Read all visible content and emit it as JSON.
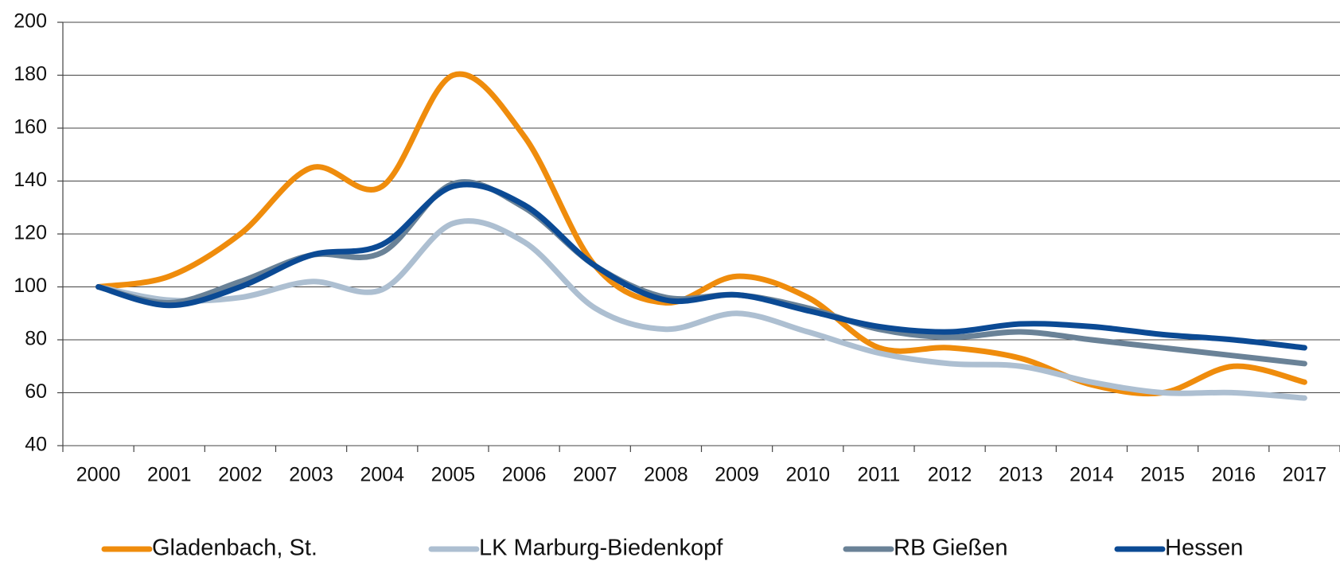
{
  "chart_data": {
    "type": "line",
    "categories": [
      "2000",
      "2001",
      "2002",
      "2003",
      "2004",
      "2005",
      "2006",
      "2007",
      "2008",
      "2009",
      "2010",
      "2011",
      "2012",
      "2013",
      "2014",
      "2015",
      "2016",
      "2017"
    ],
    "series": [
      {
        "name": "Gladenbach, St.",
        "color": "#ef8c0c",
        "values": [
          100,
          104,
          120,
          145,
          138,
          180,
          157,
          108,
          94,
          104,
          96,
          77,
          77,
          73,
          63,
          60,
          70,
          64
        ]
      },
      {
        "name": "LK Marburg-Biedenkopf",
        "color": "#adbfd1",
        "values": [
          100,
          95,
          96,
          102,
          99,
          124,
          117,
          92,
          84,
          90,
          83,
          75,
          71,
          70,
          64,
          60,
          60,
          58
        ]
      },
      {
        "name": "RB Gießen",
        "color": "#6a8297",
        "values": [
          100,
          94,
          102,
          112,
          113,
          139,
          130,
          108,
          96,
          97,
          92,
          84,
          81,
          83,
          80,
          77,
          74,
          71
        ]
      },
      {
        "name": "Hessen",
        "color": "#0b4a94",
        "values": [
          100,
          93,
          100,
          112,
          116,
          138,
          131,
          108,
          95,
          97,
          91,
          85,
          83,
          86,
          85,
          82,
          80,
          77
        ]
      }
    ],
    "ylim": [
      40,
      200
    ],
    "yticks": [
      40,
      60,
      80,
      100,
      120,
      140,
      160,
      180,
      200
    ],
    "grid": true
  }
}
